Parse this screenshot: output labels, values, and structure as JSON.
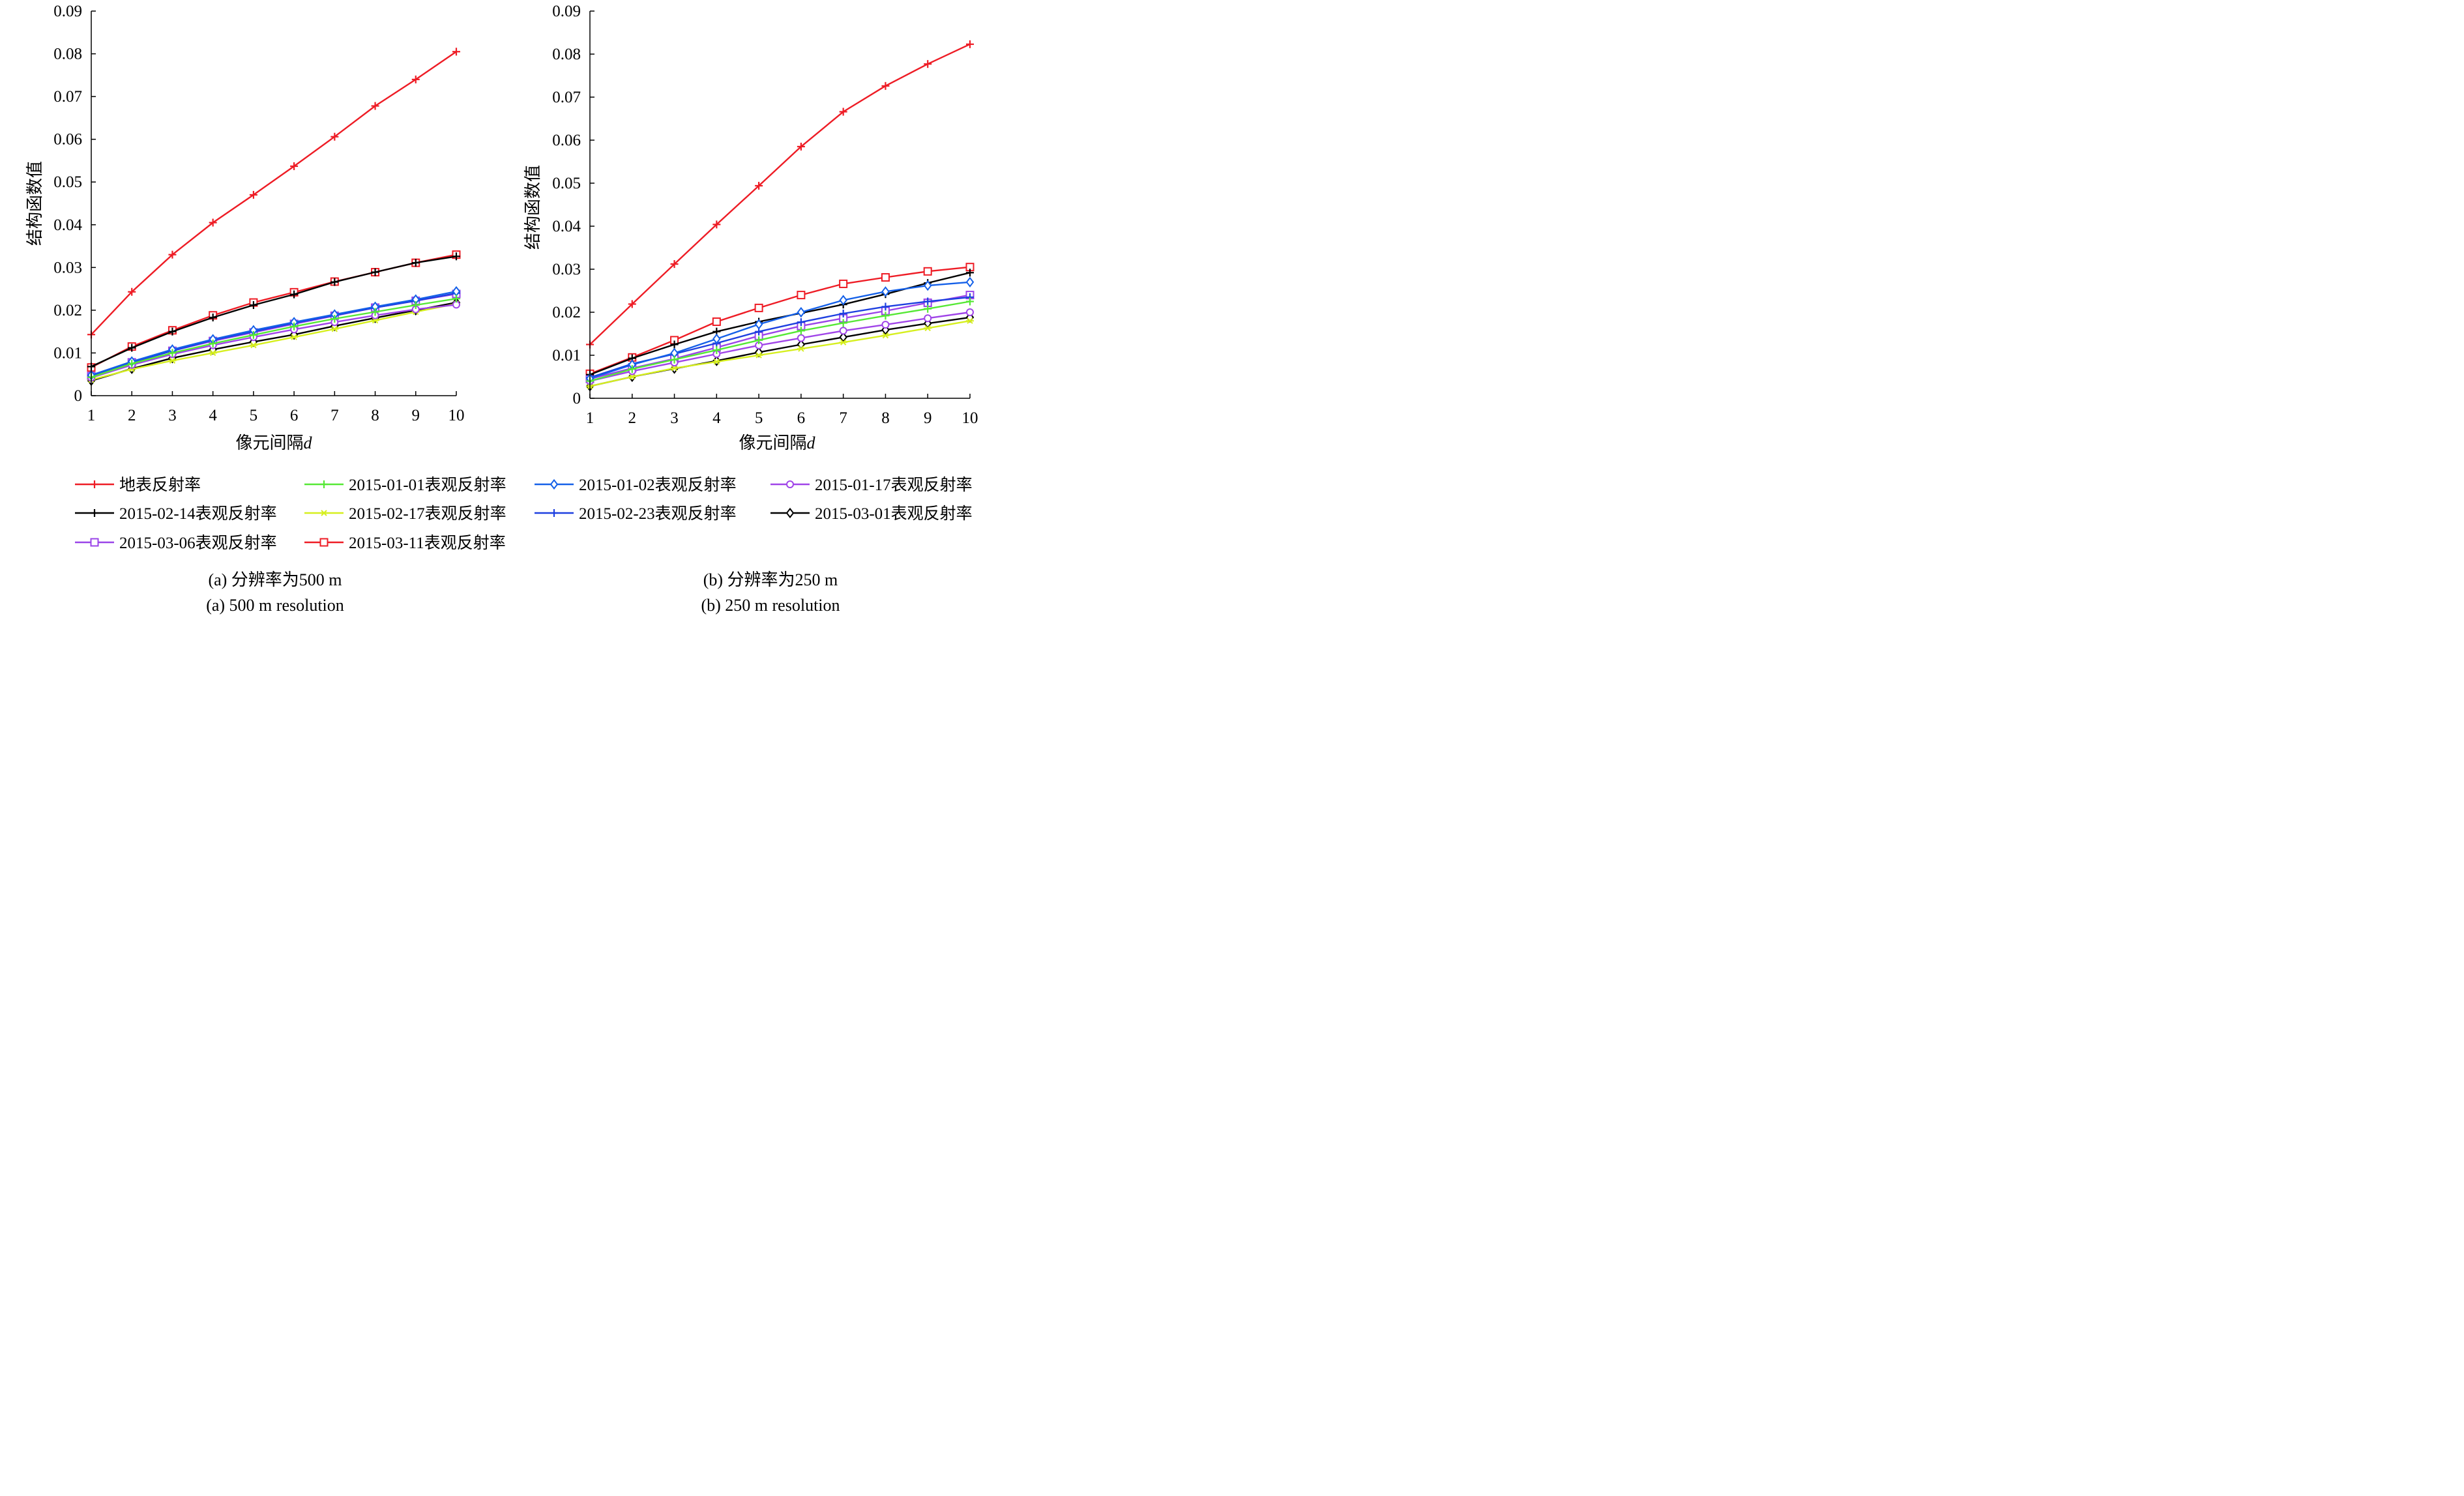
{
  "legend": [
    {
      "key": "s0",
      "label": "地表反射率",
      "color": "#ee1c25",
      "marker": "plus"
    },
    {
      "key": "s1",
      "label": "2015-01-01表观反射率",
      "color": "#55e835",
      "marker": "plus"
    },
    {
      "key": "s2",
      "label": "2015-01-02表观反射率",
      "color": "#1460e8",
      "marker": "diamond"
    },
    {
      "key": "s3",
      "label": "2015-01-17表观反射率",
      "color": "#a044e8",
      "marker": "circle"
    },
    {
      "key": "s4",
      "label": "2015-02-14表观反射率",
      "color": "#000000",
      "marker": "plus"
    },
    {
      "key": "s5",
      "label": "2015-02-17表观反射率",
      "color": "#d6ef1e",
      "marker": "star"
    },
    {
      "key": "s6",
      "label": "2015-02-23表观反射率",
      "color": "#1d3fe0",
      "marker": "plus"
    },
    {
      "key": "s7",
      "label": "2015-03-01表观反射率",
      "color": "#000000",
      "marker": "diamond"
    },
    {
      "key": "s8",
      "label": "2015-03-06表观反射率",
      "color": "#9a44e8",
      "marker": "square"
    },
    {
      "key": "s9",
      "label": "2015-03-11表观反射率",
      "color": "#ee1c25",
      "marker": "square"
    }
  ],
  "chart_data": [
    {
      "type": "line",
      "title": "(a) 分辨率为500 m",
      "subtitle": "(a) 500 m resolution",
      "xlabel": "像元间隔",
      "xlabel_var": "d",
      "ylabel": "结构函数值",
      "x": [
        1,
        2,
        3,
        4,
        5,
        6,
        7,
        8,
        9,
        10
      ],
      "xlim": [
        1,
        10
      ],
      "ylim": [
        0,
        0.09
      ],
      "yticks": [
        "0",
        "0.01",
        "0.02",
        "0.03",
        "0.04",
        "0.05",
        "0.06",
        "0.07",
        "0.08",
        "0.09"
      ],
      "grid": false,
      "series": [
        {
          "key": "s0",
          "values": [
            0.0143,
            0.0243,
            0.033,
            0.0405,
            0.047,
            0.0537,
            0.0606,
            0.0678,
            0.074,
            0.0805
          ]
        },
        {
          "key": "s1",
          "values": [
            0.0043,
            0.0075,
            0.01,
            0.0122,
            0.0142,
            0.0162,
            0.018,
            0.0196,
            0.0212,
            0.0227
          ]
        },
        {
          "key": "s2",
          "values": [
            0.0048,
            0.008,
            0.0108,
            0.0132,
            0.0153,
            0.0172,
            0.019,
            0.0208,
            0.0225,
            0.0244
          ]
        },
        {
          "key": "s3",
          "values": [
            0.0042,
            0.0072,
            0.0097,
            0.0118,
            0.0137,
            0.0155,
            0.0172,
            0.0188,
            0.0202,
            0.0213
          ]
        },
        {
          "key": "s4",
          "values": [
            0.0068,
            0.0112,
            0.015,
            0.0183,
            0.0212,
            0.0237,
            0.0266,
            0.0289,
            0.0311,
            0.0326
          ]
        },
        {
          "key": "s5",
          "values": [
            0.0037,
            0.0062,
            0.0082,
            0.01,
            0.0118,
            0.0137,
            0.0156,
            0.0176,
            0.0196,
            0.0215
          ]
        },
        {
          "key": "s6",
          "values": [
            0.0047,
            0.0078,
            0.0105,
            0.013,
            0.015,
            0.017,
            0.0188,
            0.0206,
            0.0222,
            0.024
          ]
        },
        {
          "key": "s7",
          "values": [
            0.0035,
            0.0063,
            0.0088,
            0.0108,
            0.0126,
            0.0143,
            0.0163,
            0.0182,
            0.02,
            0.0218
          ]
        },
        {
          "key": "s8",
          "values": [
            0.0046,
            0.0078,
            0.0105,
            0.0128,
            0.0148,
            0.0168,
            0.0187,
            0.0206,
            0.0222,
            0.0238
          ]
        },
        {
          "key": "s9",
          "values": [
            0.0066,
            0.0115,
            0.0153,
            0.0188,
            0.0218,
            0.0242,
            0.0267,
            0.0289,
            0.0311,
            0.033
          ]
        }
      ]
    },
    {
      "type": "line",
      "title": "(b) 分辨率为250 m",
      "subtitle": "(b) 250 m resolution",
      "xlabel": "像元间隔",
      "xlabel_var": "d",
      "ylabel": "结构函数值",
      "x": [
        1,
        2,
        3,
        4,
        5,
        6,
        7,
        8,
        9,
        10
      ],
      "xlim": [
        1,
        10
      ],
      "ylim": [
        0,
        0.09
      ],
      "yticks": [
        "0",
        "0.01",
        "0.02",
        "0.03",
        "0.04",
        "0.05",
        "0.06",
        "0.07",
        "0.08",
        "0.09"
      ],
      "grid": false,
      "series": [
        {
          "key": "s0",
          "values": [
            0.0125,
            0.0219,
            0.0312,
            0.0404,
            0.0494,
            0.0585,
            0.0666,
            0.0726,
            0.0777,
            0.0823
          ]
        },
        {
          "key": "s1",
          "values": [
            0.004,
            0.0068,
            0.009,
            0.0112,
            0.0135,
            0.0157,
            0.0175,
            0.0192,
            0.0208,
            0.0225
          ]
        },
        {
          "key": "s2",
          "values": [
            0.0046,
            0.0078,
            0.0105,
            0.0138,
            0.0172,
            0.02,
            0.0228,
            0.0248,
            0.0262,
            0.027
          ]
        },
        {
          "key": "s3",
          "values": [
            0.004,
            0.0063,
            0.0083,
            0.0103,
            0.0123,
            0.014,
            0.0157,
            0.0171,
            0.0186,
            0.02
          ]
        },
        {
          "key": "s4",
          "values": [
            0.0055,
            0.0093,
            0.0125,
            0.0155,
            0.0178,
            0.0198,
            0.0218,
            0.0242,
            0.0268,
            0.0292
          ]
        },
        {
          "key": "s5",
          "values": [
            0.0028,
            0.005,
            0.007,
            0.0085,
            0.01,
            0.0115,
            0.013,
            0.0146,
            0.0163,
            0.018
          ]
        },
        {
          "key": "s6",
          "values": [
            0.0048,
            0.008,
            0.0103,
            0.0128,
            0.0155,
            0.0177,
            0.0197,
            0.0213,
            0.0225,
            0.0235
          ]
        },
        {
          "key": "s7",
          "values": [
            0.0028,
            0.005,
            0.0069,
            0.0087,
            0.0107,
            0.0125,
            0.0142,
            0.0159,
            0.0174,
            0.0188
          ]
        },
        {
          "key": "s8",
          "values": [
            0.0045,
            0.007,
            0.0092,
            0.0118,
            0.0145,
            0.0168,
            0.0186,
            0.0203,
            0.0222,
            0.024
          ]
        },
        {
          "key": "s9",
          "values": [
            0.0057,
            0.0095,
            0.0135,
            0.0178,
            0.021,
            0.024,
            0.0266,
            0.0281,
            0.0295,
            0.0305
          ]
        }
      ]
    }
  ]
}
